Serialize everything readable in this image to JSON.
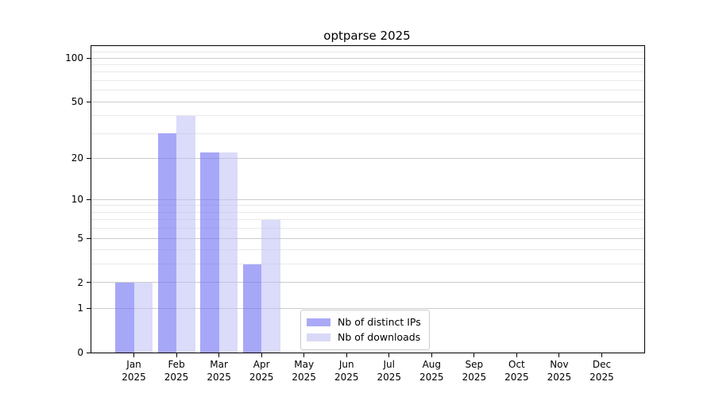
{
  "title": "optparse 2025",
  "chart_data": {
    "type": "bar",
    "title": "optparse 2025",
    "categories": [
      "Jan",
      "Feb",
      "Mar",
      "Apr",
      "May",
      "Jun",
      "Jul",
      "Aug",
      "Sep",
      "Oct",
      "Nov",
      "Dec"
    ],
    "year_label": "2025",
    "series": [
      {
        "name": "Nb of distinct IPs",
        "values": [
          2,
          30,
          22,
          3,
          0,
          0,
          0,
          0,
          0,
          0,
          0,
          0
        ],
        "color": "#a9a9f7",
        "bar_fill": "rgba(120,120,245,0.65)"
      },
      {
        "name": "Nb of downloads",
        "values": [
          2,
          40,
          22,
          7,
          0,
          0,
          0,
          0,
          0,
          0,
          0,
          0
        ],
        "color": "#d9d9f7",
        "bar_fill": "rgba(190,190,245,0.55)"
      }
    ],
    "xlabel": "",
    "ylabel": "",
    "y_scale": "log(1+x)",
    "y_ticks": [
      0,
      1,
      2,
      5,
      10,
      20,
      50,
      100
    ],
    "y_minor_ticks": [
      3,
      4,
      6,
      7,
      8,
      9,
      30,
      40,
      60,
      70,
      80,
      90,
      110
    ],
    "ylim": [
      0,
      121
    ],
    "xlim_units": [
      -1,
      12
    ],
    "grid": true,
    "grid_major_color": "#cccccc",
    "grid_minor_color": "#e9e9e9",
    "legend_position": "lower-center",
    "legend_entries": [
      "Nb of distinct IPs",
      "Nb of downloads"
    ]
  }
}
